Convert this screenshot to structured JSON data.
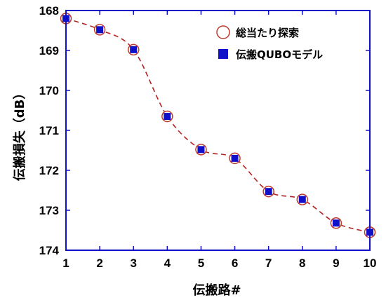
{
  "chart_data": {
    "type": "line",
    "xlabel": "伝搬路#",
    "ylabel": "伝搬損失（dB）",
    "xlim": [
      1,
      10
    ],
    "ylim": [
      168,
      174
    ],
    "y_inverted": true,
    "x_ticks": [
      1,
      2,
      3,
      4,
      5,
      6,
      7,
      8,
      9,
      10
    ],
    "y_ticks": [
      168,
      169,
      170,
      171,
      172,
      173,
      174
    ],
    "legend_position": "top-right",
    "grid": false,
    "x": [
      1,
      2,
      3,
      4,
      5,
      6,
      7,
      8,
      9,
      10
    ],
    "series": [
      {
        "name": "総当たり探索",
        "marker": "open-circle",
        "color": "#c0392b",
        "values": [
          168.2,
          168.48,
          168.98,
          170.65,
          171.48,
          171.7,
          172.53,
          172.73,
          173.32,
          173.55
        ]
      },
      {
        "name": "伝搬QUBOモデル",
        "marker": "filled-square",
        "color": "#1010c8",
        "values": [
          168.2,
          168.48,
          168.98,
          170.65,
          171.48,
          171.7,
          172.53,
          172.73,
          173.32,
          173.55
        ]
      }
    ],
    "curve_color": "#b22222"
  }
}
